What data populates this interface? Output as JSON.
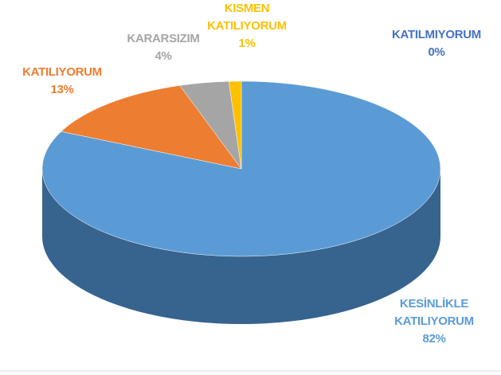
{
  "chart_data": {
    "type": "pie",
    "categories": [
      "KESİNLİKLE KATILIYORUM",
      "KATILIYORUM",
      "KARARSIZIM",
      "KISMEN KATILIYORUM",
      "KATILMIYORUM"
    ],
    "values": [
      82,
      13,
      4,
      1,
      0
    ],
    "value_labels": [
      "82%",
      "13%",
      "4%",
      "1%",
      "0%"
    ],
    "colors": [
      "#5b9bd5",
      "#ed7d31",
      "#a5a5a5",
      "#ffc000",
      "#4472c4"
    ]
  }
}
